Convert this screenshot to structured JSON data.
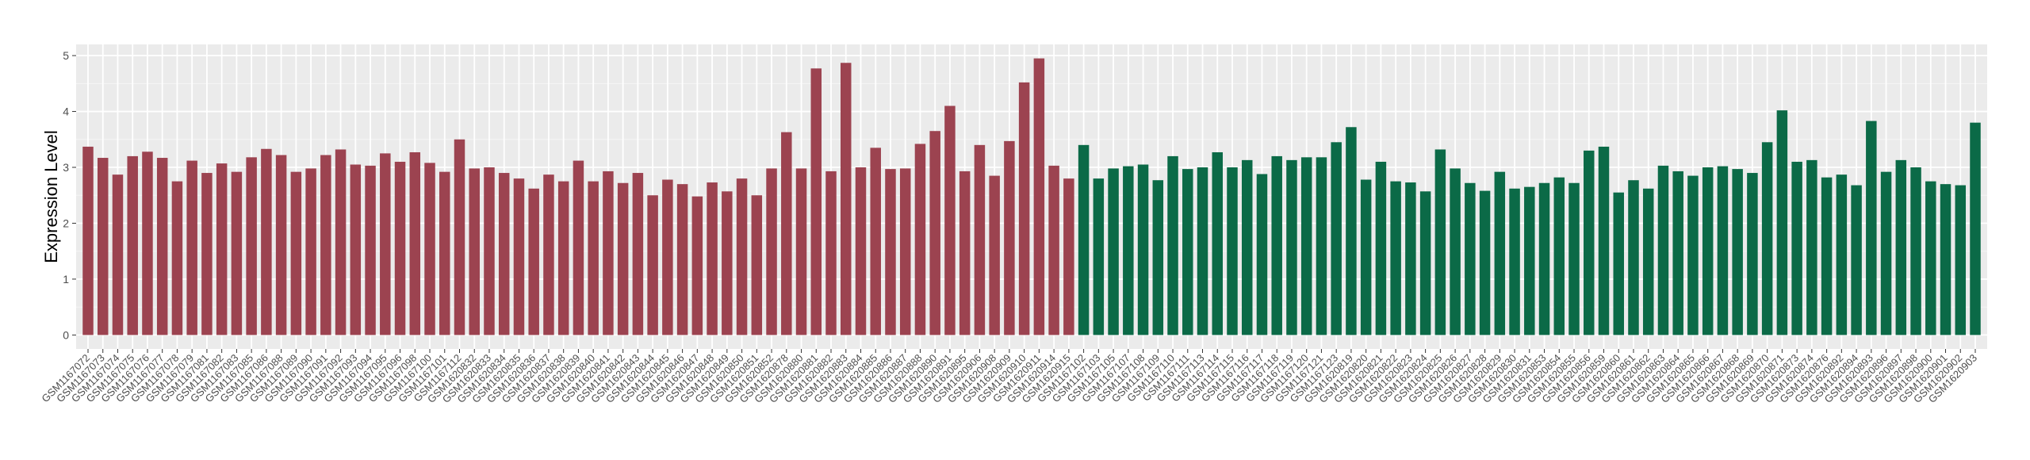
{
  "chart_data": {
    "type": "bar",
    "y_label": "Expression Level",
    "ylim": [
      -0.25,
      5.2
    ],
    "yticks": [
      0,
      1,
      2,
      3,
      4,
      5
    ],
    "grid": true,
    "groups": [
      {
        "color": "#9c4350",
        "categories": [
          "GSM1167072",
          "GSM1167073",
          "GSM1167074",
          "GSM1167075",
          "GSM1167076",
          "GSM1167077",
          "GSM1167078",
          "GSM1167079",
          "GSM1167081",
          "GSM1167082",
          "GSM1167083",
          "GSM1167085",
          "GSM1167086",
          "GSM1167088",
          "GSM1167089",
          "GSM1167090",
          "GSM1167091",
          "GSM1167092",
          "GSM1167093",
          "GSM1167094",
          "GSM1167095",
          "GSM1167096",
          "GSM1167098",
          "GSM1167100",
          "GSM1167101",
          "GSM1167112",
          "GSM1620832",
          "GSM1620833",
          "GSM1620834",
          "GSM1620835",
          "GSM1620836",
          "GSM1620837",
          "GSM1620838",
          "GSM1620839",
          "GSM1620840",
          "GSM1620841",
          "GSM1620842",
          "GSM1620843",
          "GSM1620844",
          "GSM1620845",
          "GSM1620846",
          "GSM1620847",
          "GSM1620848",
          "GSM1620849",
          "GSM1620850",
          "GSM1620851",
          "GSM1620852",
          "GSM1620878",
          "GSM1620880",
          "GSM1620881",
          "GSM1620882",
          "GSM1620883",
          "GSM1620884",
          "GSM1620885",
          "GSM1620886",
          "GSM1620887",
          "GSM1620888",
          "GSM1620890",
          "GSM1620891",
          "GSM1620895",
          "GSM1620906",
          "GSM1620908",
          "GSM1620909",
          "GSM1620910",
          "GSM1620911",
          "GSM1620914",
          "GSM1620915"
        ],
        "values": [
          3.37,
          3.17,
          2.87,
          3.2,
          3.28,
          3.17,
          2.75,
          3.12,
          2.9,
          3.07,
          2.92,
          3.18,
          3.33,
          3.22,
          2.92,
          2.98,
          3.22,
          3.32,
          3.05,
          3.03,
          3.25,
          3.1,
          3.27,
          3.08,
          2.92,
          3.5,
          2.98,
          3.0,
          2.9,
          2.8,
          2.62,
          2.87,
          2.75,
          3.12,
          2.75,
          2.93,
          2.72,
          2.9,
          2.5,
          2.78,
          2.7,
          2.48,
          2.73,
          2.57,
          2.8,
          2.5,
          2.98,
          3.63,
          2.98,
          4.77,
          2.93,
          4.87,
          3.0,
          3.35,
          2.97,
          2.98,
          3.42,
          3.65,
          4.1,
          2.93,
          3.4,
          2.85,
          3.47,
          4.52,
          4.95,
          3.03,
          2.8
        ]
      },
      {
        "color": "#0b6a47",
        "categories": [
          "GSM1167102",
          "GSM1167103",
          "GSM1167105",
          "GSM1167107",
          "GSM1167108",
          "GSM1167109",
          "GSM1167110",
          "GSM1167111",
          "GSM1167113",
          "GSM1167114",
          "GSM1167115",
          "GSM1167116",
          "GSM1167117",
          "GSM1167118",
          "GSM1167119",
          "GSM1167120",
          "GSM1167121",
          "GSM1167123",
          "GSM1620819",
          "GSM1620820",
          "GSM1620821",
          "GSM1620822",
          "GSM1620823",
          "GSM1620824",
          "GSM1620825",
          "GSM1620826",
          "GSM1620827",
          "GSM1620828",
          "GSM1620829",
          "GSM1620830",
          "GSM1620831",
          "GSM1620853",
          "GSM1620854",
          "GSM1620855",
          "GSM1620856",
          "GSM1620859",
          "GSM1620860",
          "GSM1620861",
          "GSM1620862",
          "GSM1620863",
          "GSM1620864",
          "GSM1620865",
          "GSM1620866",
          "GSM1620867",
          "GSM1620868",
          "GSM1620869",
          "GSM1620870",
          "GSM1620871",
          "GSM1620873",
          "GSM1620874",
          "GSM1620876",
          "GSM1620892",
          "GSM1620894",
          "GSM1620893",
          "GSM1620896",
          "GSM1620897",
          "GSM1620898",
          "GSM1620900",
          "GSM1620901",
          "GSM1620902",
          "GSM1620903"
        ],
        "values": [
          3.4,
          2.8,
          2.98,
          3.02,
          3.05,
          2.77,
          3.2,
          2.97,
          3.0,
          3.27,
          3.0,
          3.13,
          2.88,
          3.2,
          3.13,
          3.18,
          3.18,
          3.45,
          3.72,
          2.78,
          3.1,
          2.75,
          2.73,
          2.57,
          3.32,
          2.98,
          2.72,
          2.58,
          2.92,
          2.62,
          2.65,
          2.72,
          2.82,
          2.72,
          3.3,
          3.37,
          2.55,
          2.77,
          2.62,
          3.03,
          2.93,
          2.85,
          3.0,
          3.02,
          2.97,
          2.9,
          3.45,
          4.02,
          3.1,
          3.13,
          2.82,
          2.87,
          2.68,
          3.83,
          2.92,
          3.13,
          3.0,
          2.75,
          2.7,
          2.68,
          3.8
        ]
      }
    ]
  }
}
